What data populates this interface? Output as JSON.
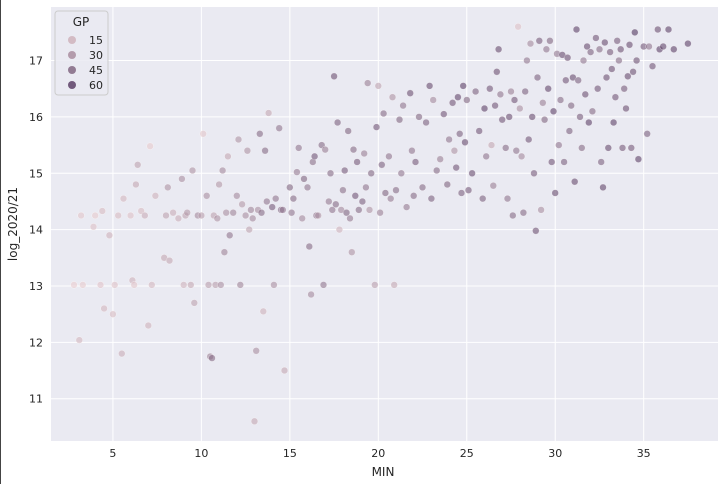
{
  "chart_data": {
    "type": "scatter",
    "title": "",
    "xlabel": "MIN",
    "ylabel": "log_2020/21",
    "xlim": [
      1.5,
      39.2
    ],
    "ylim": [
      10.25,
      17.95
    ],
    "xticks": [
      5,
      10,
      15,
      20,
      25,
      30,
      35
    ],
    "yticks": [
      11,
      12,
      13,
      14,
      15,
      16,
      17
    ],
    "grid": true,
    "background": "#EAEAF2",
    "hue_variable": "GP",
    "hue_range": [
      1,
      72
    ],
    "color_light": "#F3D6D7",
    "color_dark": "#3E2350",
    "point_opacity": 0.6,
    "legend": {
      "title": "GP",
      "placement": "upper-left",
      "entries": [
        {
          "label": "15",
          "value": 15
        },
        {
          "label": "30",
          "value": 30
        },
        {
          "label": "45",
          "value": 45
        },
        {
          "label": "60",
          "value": 60
        }
      ]
    },
    "points": [
      [
        2.8,
        13.02,
        5
      ],
      [
        3.1,
        12.04,
        14
      ],
      [
        3.2,
        14.25,
        8
      ],
      [
        3.3,
        13.02,
        6
      ],
      [
        3.9,
        14.05,
        10
      ],
      [
        4.0,
        14.25,
        6
      ],
      [
        4.3,
        13.02,
        9
      ],
      [
        4.4,
        14.33,
        12
      ],
      [
        4.5,
        12.6,
        14
      ],
      [
        4.8,
        13.9,
        16
      ],
      [
        5.0,
        12.5,
        12
      ],
      [
        5.1,
        13.02,
        10
      ],
      [
        5.3,
        14.25,
        12
      ],
      [
        5.5,
        11.8,
        18
      ],
      [
        5.6,
        14.55,
        14
      ],
      [
        6.0,
        14.25,
        10
      ],
      [
        6.1,
        13.1,
        16
      ],
      [
        6.2,
        13.02,
        8
      ],
      [
        6.3,
        14.8,
        20
      ],
      [
        6.4,
        15.15,
        22
      ],
      [
        6.6,
        14.33,
        12
      ],
      [
        6.8,
        14.25,
        18
      ],
      [
        7.0,
        12.3,
        16
      ],
      [
        7.1,
        15.48,
        6
      ],
      [
        7.2,
        13.02,
        14
      ],
      [
        7.4,
        14.6,
        16
      ],
      [
        7.9,
        13.5,
        20
      ],
      [
        8.0,
        14.25,
        22
      ],
      [
        8.1,
        14.75,
        28
      ],
      [
        8.2,
        13.45,
        20
      ],
      [
        8.4,
        14.3,
        18
      ],
      [
        8.7,
        14.2,
        18
      ],
      [
        8.9,
        14.9,
        30
      ],
      [
        9.0,
        13.02,
        16
      ],
      [
        9.1,
        14.25,
        22
      ],
      [
        9.2,
        14.3,
        26
      ],
      [
        9.4,
        13.02,
        20
      ],
      [
        9.5,
        15.05,
        28
      ],
      [
        9.6,
        12.7,
        22
      ],
      [
        9.8,
        14.25,
        32
      ],
      [
        10.0,
        14.25,
        24
      ],
      [
        10.1,
        15.7,
        8
      ],
      [
        10.3,
        14.6,
        30
      ],
      [
        10.4,
        13.02,
        24
      ],
      [
        10.5,
        11.75,
        34
      ],
      [
        10.6,
        11.72,
        44
      ],
      [
        10.7,
        14.25,
        22
      ],
      [
        10.8,
        13.02,
        24
      ],
      [
        10.9,
        14.2,
        28
      ],
      [
        11.0,
        14.8,
        26
      ],
      [
        11.1,
        13.02,
        30
      ],
      [
        11.2,
        15.05,
        32
      ],
      [
        11.3,
        13.6,
        34
      ],
      [
        11.4,
        14.3,
        30
      ],
      [
        11.5,
        15.3,
        20
      ],
      [
        11.6,
        13.9,
        40
      ],
      [
        11.8,
        14.3,
        34
      ],
      [
        12.0,
        14.6,
        32
      ],
      [
        12.1,
        15.6,
        28
      ],
      [
        12.2,
        13.02,
        34
      ],
      [
        12.3,
        14.45,
        26
      ],
      [
        12.5,
        14.25,
        30
      ],
      [
        12.6,
        15.4,
        28
      ],
      [
        12.7,
        14.0,
        22
      ],
      [
        12.8,
        14.35,
        34
      ],
      [
        12.9,
        14.2,
        32
      ],
      [
        13.0,
        10.6,
        20
      ],
      [
        13.1,
        11.85,
        30
      ],
      [
        13.2,
        14.35,
        30
      ],
      [
        13.3,
        15.7,
        44
      ],
      [
        13.4,
        14.3,
        44
      ],
      [
        13.5,
        12.55,
        16
      ],
      [
        13.6,
        15.4,
        44
      ],
      [
        13.7,
        14.5,
        40
      ],
      [
        13.8,
        16.07,
        20
      ],
      [
        14.0,
        14.4,
        50
      ],
      [
        14.1,
        13.02,
        30
      ],
      [
        14.2,
        14.55,
        40
      ],
      [
        14.4,
        15.8,
        40
      ],
      [
        14.5,
        14.35,
        44
      ],
      [
        14.6,
        14.35,
        40
      ],
      [
        14.7,
        11.5,
        20
      ],
      [
        15.0,
        14.75,
        46
      ],
      [
        15.1,
        14.3,
        40
      ],
      [
        15.2,
        14.55,
        44
      ],
      [
        15.4,
        15.02,
        38
      ],
      [
        15.5,
        15.45,
        40
      ],
      [
        15.7,
        14.2,
        32
      ],
      [
        15.8,
        14.9,
        46
      ],
      [
        16.0,
        14.75,
        40
      ],
      [
        16.1,
        13.7,
        44
      ],
      [
        16.2,
        12.85,
        32
      ],
      [
        16.3,
        15.2,
        42
      ],
      [
        16.4,
        15.3,
        52
      ],
      [
        16.5,
        14.25,
        40
      ],
      [
        16.6,
        14.25,
        28
      ],
      [
        16.8,
        15.5,
        44
      ],
      [
        16.9,
        13.02,
        40
      ],
      [
        17.0,
        15.42,
        36
      ],
      [
        17.2,
        14.5,
        38
      ],
      [
        17.3,
        15.0,
        44
      ],
      [
        17.4,
        14.35,
        40
      ],
      [
        17.5,
        16.72,
        54
      ],
      [
        17.6,
        14.45,
        44
      ],
      [
        17.7,
        15.9,
        48
      ],
      [
        17.8,
        14.0,
        16
      ],
      [
        17.9,
        14.35,
        32
      ],
      [
        18.0,
        14.7,
        42
      ],
      [
        18.1,
        15.05,
        50
      ],
      [
        18.2,
        14.3,
        46
      ],
      [
        18.3,
        15.75,
        46
      ],
      [
        18.4,
        14.2,
        38
      ],
      [
        18.5,
        13.6,
        28
      ],
      [
        18.6,
        15.42,
        44
      ],
      [
        18.7,
        14.6,
        52
      ],
      [
        18.8,
        15.2,
        50
      ],
      [
        18.9,
        14.35,
        44
      ],
      [
        19.1,
        14.5,
        48
      ],
      [
        19.2,
        15.35,
        36
      ],
      [
        19.3,
        14.75,
        40
      ],
      [
        19.4,
        16.6,
        36
      ],
      [
        19.5,
        14.35,
        28
      ],
      [
        19.6,
        15.0,
        46
      ],
      [
        19.8,
        13.02,
        24
      ],
      [
        19.9,
        15.82,
        52
      ],
      [
        20.0,
        16.55,
        22
      ],
      [
        20.1,
        14.3,
        36
      ],
      [
        20.2,
        15.15,
        48
      ],
      [
        20.3,
        16.06,
        44
      ],
      [
        20.4,
        14.65,
        46
      ],
      [
        20.6,
        15.3,
        40
      ],
      [
        20.7,
        14.55,
        38
      ],
      [
        20.8,
        16.35,
        28
      ],
      [
        20.9,
        13.02,
        20
      ],
      [
        21.0,
        14.7,
        44
      ],
      [
        21.2,
        15.95,
        46
      ],
      [
        21.3,
        15.0,
        40
      ],
      [
        21.4,
        16.2,
        40
      ],
      [
        21.6,
        14.4,
        38
      ],
      [
        21.8,
        16.42,
        54
      ],
      [
        21.9,
        15.4,
        40
      ],
      [
        22.0,
        14.6,
        44
      ],
      [
        22.1,
        15.2,
        50
      ],
      [
        22.3,
        16.0,
        46
      ],
      [
        22.5,
        14.75,
        44
      ],
      [
        22.7,
        15.9,
        48
      ],
      [
        22.9,
        16.55,
        56
      ],
      [
        23.0,
        14.55,
        48
      ],
      [
        23.1,
        16.3,
        32
      ],
      [
        23.3,
        15.05,
        44
      ],
      [
        23.5,
        15.25,
        36
      ],
      [
        23.7,
        16.05,
        52
      ],
      [
        23.9,
        14.8,
        46
      ],
      [
        24.0,
        15.6,
        40
      ],
      [
        24.2,
        16.25,
        52
      ],
      [
        24.3,
        15.4,
        28
      ],
      [
        24.4,
        15.1,
        52
      ],
      [
        24.5,
        16.35,
        58
      ],
      [
        24.6,
        15.7,
        48
      ],
      [
        24.7,
        14.65,
        48
      ],
      [
        24.8,
        16.55,
        60
      ],
      [
        24.9,
        15.55,
        56
      ],
      [
        25.0,
        16.3,
        46
      ],
      [
        25.1,
        14.7,
        50
      ],
      [
        25.3,
        15.0,
        56
      ],
      [
        25.5,
        16.45,
        48
      ],
      [
        25.7,
        15.75,
        52
      ],
      [
        25.9,
        14.55,
        48
      ],
      [
        26.0,
        16.15,
        60
      ],
      [
        26.1,
        15.3,
        40
      ],
      [
        26.3,
        16.5,
        52
      ],
      [
        26.4,
        15.5,
        20
      ],
      [
        26.5,
        14.78,
        36
      ],
      [
        26.6,
        16.2,
        52
      ],
      [
        26.7,
        16.8,
        54
      ],
      [
        26.8,
        17.2,
        56
      ],
      [
        26.9,
        16.4,
        40
      ],
      [
        27.0,
        15.95,
        52
      ],
      [
        27.2,
        15.45,
        44
      ],
      [
        27.3,
        14.55,
        40
      ],
      [
        27.4,
        16.0,
        56
      ],
      [
        27.5,
        16.45,
        36
      ],
      [
        27.6,
        14.25,
        44
      ],
      [
        27.7,
        16.3,
        52
      ],
      [
        27.8,
        15.4,
        40
      ],
      [
        27.9,
        17.6,
        10
      ],
      [
        28.0,
        16.15,
        30
      ],
      [
        28.1,
        15.3,
        32
      ],
      [
        28.2,
        14.3,
        44
      ],
      [
        28.3,
        16.45,
        48
      ],
      [
        28.4,
        17.0,
        40
      ],
      [
        28.5,
        15.6,
        52
      ],
      [
        28.6,
        17.3,
        32
      ],
      [
        28.7,
        16.0,
        56
      ],
      [
        28.8,
        15.0,
        50
      ],
      [
        28.9,
        13.98,
        54
      ],
      [
        29.0,
        16.7,
        48
      ],
      [
        29.1,
        17.35,
        50
      ],
      [
        29.2,
        14.35,
        30
      ],
      [
        29.3,
        16.25,
        36
      ],
      [
        29.4,
        15.95,
        46
      ],
      [
        29.5,
        17.2,
        40
      ],
      [
        29.6,
        16.5,
        58
      ],
      [
        29.7,
        17.35,
        46
      ],
      [
        29.8,
        15.2,
        52
      ],
      [
        29.9,
        16.1,
        60
      ],
      [
        30.0,
        14.65,
        56
      ],
      [
        30.1,
        17.12,
        40
      ],
      [
        30.2,
        15.5,
        40
      ],
      [
        30.3,
        16.3,
        44
      ],
      [
        30.4,
        17.1,
        56
      ],
      [
        30.5,
        15.2,
        48
      ],
      [
        30.6,
        16.65,
        52
      ],
      [
        30.7,
        17.05,
        54
      ],
      [
        30.8,
        15.75,
        48
      ],
      [
        30.9,
        16.2,
        46
      ],
      [
        31.0,
        16.7,
        56
      ],
      [
        31.1,
        14.85,
        56
      ],
      [
        31.2,
        17.55,
        60
      ],
      [
        31.3,
        16.65,
        48
      ],
      [
        31.4,
        16.0,
        50
      ],
      [
        31.5,
        15.45,
        44
      ],
      [
        31.6,
        17.0,
        40
      ],
      [
        31.7,
        16.4,
        54
      ],
      [
        31.8,
        17.25,
        56
      ],
      [
        31.9,
        15.9,
        60
      ],
      [
        32.0,
        17.15,
        48
      ],
      [
        32.1,
        16.1,
        44
      ],
      [
        32.3,
        17.4,
        52
      ],
      [
        32.4,
        16.5,
        52
      ],
      [
        32.5,
        17.2,
        44
      ],
      [
        32.6,
        15.2,
        48
      ],
      [
        32.7,
        14.75,
        58
      ],
      [
        32.8,
        17.32,
        56
      ],
      [
        32.9,
        16.7,
        54
      ],
      [
        33.0,
        15.45,
        56
      ],
      [
        33.1,
        17.15,
        50
      ],
      [
        33.2,
        16.85,
        54
      ],
      [
        33.3,
        15.9,
        60
      ],
      [
        33.4,
        16.35,
        52
      ],
      [
        33.5,
        17.35,
        50
      ],
      [
        33.6,
        17.0,
        44
      ],
      [
        33.7,
        17.2,
        54
      ],
      [
        33.8,
        15.45,
        50
      ],
      [
        33.9,
        16.5,
        50
      ],
      [
        34.0,
        16.15,
        54
      ],
      [
        34.1,
        16.72,
        56
      ],
      [
        34.2,
        17.28,
        56
      ],
      [
        34.3,
        15.45,
        50
      ],
      [
        34.4,
        16.8,
        54
      ],
      [
        34.5,
        17.5,
        64
      ],
      [
        34.6,
        17.0,
        54
      ],
      [
        34.7,
        15.25,
        60
      ],
      [
        35.0,
        17.25,
        52
      ],
      [
        35.2,
        15.7,
        48
      ],
      [
        35.3,
        17.25,
        40
      ],
      [
        35.5,
        16.9,
        52
      ],
      [
        35.8,
        17.55,
        54
      ],
      [
        35.9,
        17.2,
        60
      ],
      [
        36.1,
        17.25,
        58
      ],
      [
        36.4,
        17.55,
        60
      ],
      [
        36.7,
        17.2,
        60
      ],
      [
        37.5,
        17.3,
        60
      ]
    ]
  }
}
